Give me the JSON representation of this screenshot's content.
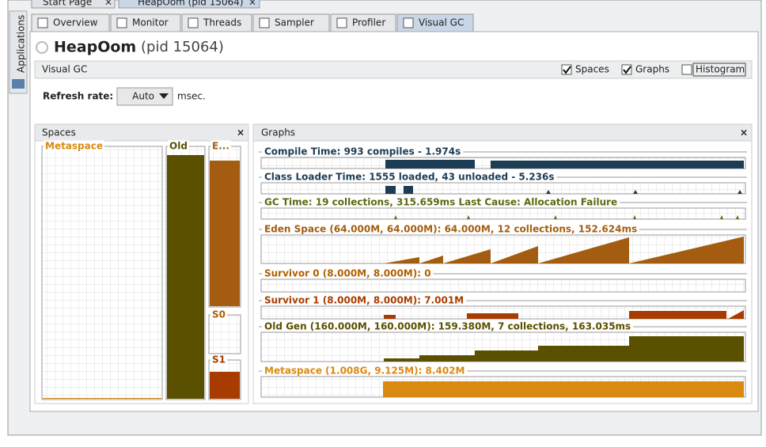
{
  "top_tabs": [
    "Start Page",
    "HeapOom (pid 15064)"
  ],
  "sidebar": "Applications",
  "tabs": [
    "Overview",
    "Monitor",
    "Threads",
    "Sampler",
    "Profiler",
    "Visual GC"
  ],
  "header": {
    "title": "HeapOom",
    "pid": "(pid 15064)"
  },
  "toolbar": {
    "label": "Visual GC",
    "checkboxes": [
      {
        "label": "Spaces",
        "checked": true
      },
      {
        "label": "Graphs",
        "checked": true
      },
      {
        "label": "Histogram",
        "checked": false
      }
    ]
  },
  "refresh": {
    "label": "Refresh rate:",
    "value": "Auto",
    "unit": "msec."
  },
  "spaces_panel": {
    "title": "Spaces",
    "spaces": [
      {
        "label": "Metaspace",
        "color": "#d98a10"
      },
      {
        "label": "Old",
        "color": "#5a5000"
      },
      {
        "label": "E...",
        "color": "#a45d10"
      },
      {
        "label": "S0",
        "color": "#b06000"
      },
      {
        "label": "S1",
        "color": "#a83c00"
      }
    ]
  },
  "graphs_panel": {
    "title": "Graphs",
    "graphs": [
      {
        "label": "Compile Time: 993 compiles - 1.974s",
        "color": "#1d3d55"
      },
      {
        "label": "Class Loader Time: 1555 loaded, 43 unloaded - 5.236s",
        "color": "#1d3d55"
      },
      {
        "label": "GC Time: 19 collections, 315.659ms Last Cause: Allocation Failure",
        "color": "#5a6a10"
      },
      {
        "label": "Eden Space (64.000M, 64.000M): 64.000M, 12 collections, 152.624ms",
        "color": "#a45d10"
      },
      {
        "label": "Survivor 0 (8.000M, 8.000M): 0",
        "color": "#b06000"
      },
      {
        "label": "Survivor 1 (8.000M, 8.000M): 7.001M",
        "color": "#a83c00"
      },
      {
        "label": "Old Gen (160.000M, 160.000M): 159.380M, 7 collections, 163.035ms",
        "color": "#5a5000"
      },
      {
        "label": "Metaspace (1.008G, 9.125M): 8.402M",
        "color": "#d98a10"
      }
    ]
  }
}
